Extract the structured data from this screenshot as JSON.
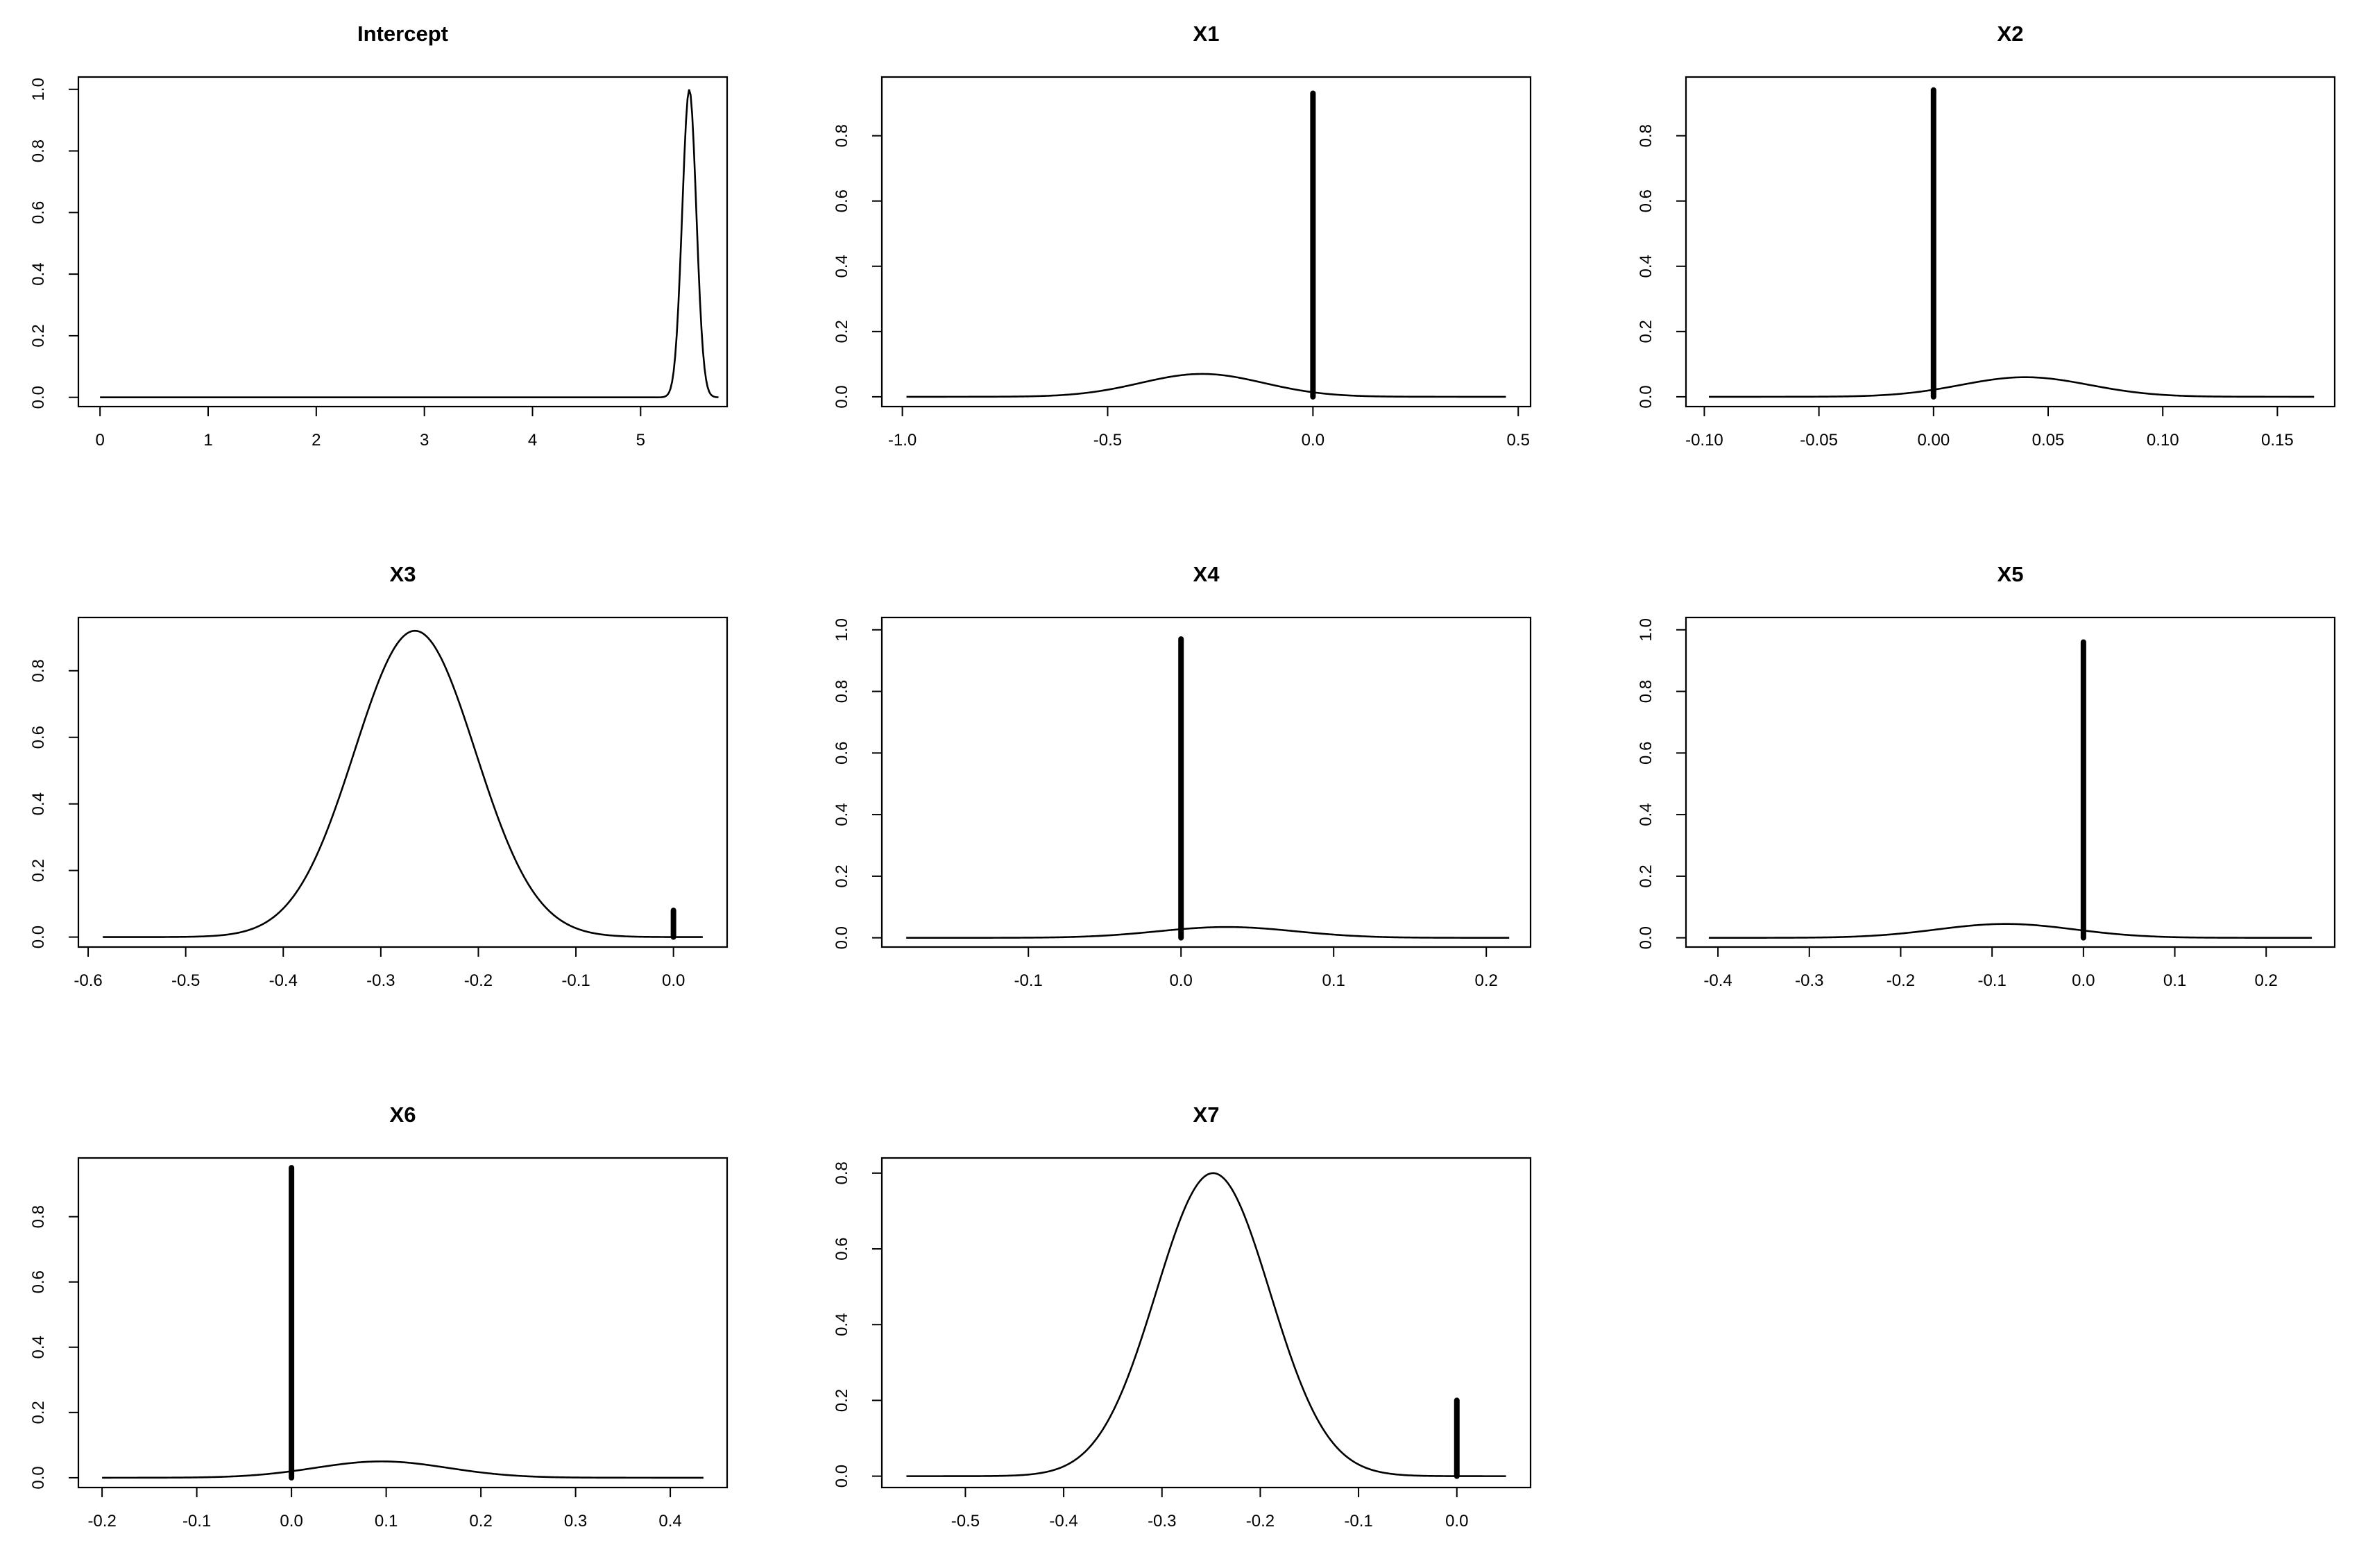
{
  "chart_data": [
    {
      "type": "line",
      "title": "Intercept",
      "xlabel": "",
      "ylabel": "",
      "xlim": [
        -0.2,
        5.8
      ],
      "ylim": [
        -0.03,
        1.04
      ],
      "x_ticks": [
        "0",
        "1",
        "2",
        "3",
        "4",
        "5"
      ],
      "y_ticks": [
        "0.0",
        "0.2",
        "0.4",
        "0.6",
        "0.8",
        "1.0"
      ],
      "curve": {
        "x_range": [
          0,
          5.72
        ],
        "peak_x": 5.45,
        "peak_y": 1.0,
        "sd": 0.065
      },
      "spike": null,
      "grid": false,
      "legend": "none"
    },
    {
      "type": "line",
      "title": "X1",
      "xlabel": "",
      "ylabel": "",
      "xlim": [
        -1.05,
        0.53
      ],
      "ylim": [
        -0.03,
        0.98
      ],
      "x_ticks": [
        "-1.0",
        "-0.5",
        "0.0",
        "0.5"
      ],
      "y_ticks": [
        "0.0",
        "0.2",
        "0.4",
        "0.6",
        "0.8"
      ],
      "curve": {
        "x_range": [
          -0.99,
          0.47
        ],
        "peak_x": -0.27,
        "peak_y": 0.07,
        "sd": 0.15
      },
      "spike": {
        "x": 0.0,
        "y": 0.93
      },
      "grid": false,
      "legend": "none"
    },
    {
      "type": "line",
      "title": "X2",
      "xlabel": "",
      "ylabel": "",
      "xlim": [
        -0.108,
        0.175
      ],
      "ylim": [
        -0.03,
        0.98
      ],
      "x_ticks": [
        "-0.10",
        "-0.05",
        "0.00",
        "0.05",
        "0.10",
        "0.15"
      ],
      "y_ticks": [
        "0.0",
        "0.2",
        "0.4",
        "0.6",
        "0.8"
      ],
      "curve": {
        "x_range": [
          -0.098,
          0.166
        ],
        "peak_x": 0.04,
        "peak_y": 0.06,
        "sd": 0.028
      },
      "spike": {
        "x": 0.0,
        "y": 0.94
      },
      "grid": false,
      "legend": "none"
    },
    {
      "type": "line",
      "title": "X3",
      "xlabel": "",
      "ylabel": "",
      "xlim": [
        -0.61,
        0.055
      ],
      "ylim": [
        -0.03,
        0.96
      ],
      "x_ticks": [
        "-0.6",
        "-0.5",
        "-0.4",
        "-0.3",
        "-0.2",
        "-0.1",
        "0.0"
      ],
      "y_ticks": [
        "0.0",
        "0.2",
        "0.4",
        "0.6",
        "0.8"
      ],
      "curve": {
        "x_range": [
          -0.585,
          0.03
        ],
        "peak_x": -0.265,
        "peak_y": 0.92,
        "sd": 0.062
      },
      "spike": {
        "x": 0.0,
        "y": 0.08
      },
      "grid": false,
      "legend": "none"
    },
    {
      "type": "line",
      "title": "X4",
      "xlabel": "",
      "ylabel": "",
      "xlim": [
        -0.196,
        0.229
      ],
      "ylim": [
        -0.03,
        1.04
      ],
      "x_ticks": [
        "-0.1",
        "0.0",
        "0.1",
        "0.2"
      ],
      "y_ticks": [
        "0.0",
        "0.2",
        "0.4",
        "0.6",
        "0.8",
        "1.0"
      ],
      "curve": {
        "x_range": [
          -0.18,
          0.215
        ],
        "peak_x": 0.03,
        "peak_y": 0.035,
        "sd": 0.045
      },
      "spike": {
        "x": 0.0,
        "y": 0.97
      },
      "grid": false,
      "legend": "none"
    },
    {
      "type": "line",
      "title": "X5",
      "xlabel": "",
      "ylabel": "",
      "xlim": [
        -0.435,
        0.275
      ],
      "ylim": [
        -0.03,
        1.04
      ],
      "x_ticks": [
        "-0.4",
        "-0.3",
        "-0.2",
        "-0.1",
        "0.0",
        "0.1",
        "0.2"
      ],
      "y_ticks": [
        "0.0",
        "0.2",
        "0.4",
        "0.6",
        "0.8",
        "1.0"
      ],
      "curve": {
        "x_range": [
          -0.41,
          0.25
        ],
        "peak_x": -0.085,
        "peak_y": 0.045,
        "sd": 0.075
      },
      "spike": {
        "x": 0.0,
        "y": 0.96
      },
      "grid": false,
      "legend": "none"
    },
    {
      "type": "line",
      "title": "X6",
      "xlabel": "",
      "ylabel": "",
      "xlim": [
        -0.225,
        0.46
      ],
      "ylim": [
        -0.03,
        0.98
      ],
      "x_ticks": [
        "-0.2",
        "-0.1",
        "0.0",
        "0.1",
        "0.2",
        "0.3",
        "0.4"
      ],
      "y_ticks": [
        "0.0",
        "0.2",
        "0.4",
        "0.6",
        "0.8"
      ],
      "curve": {
        "x_range": [
          -0.2,
          0.435
        ],
        "peak_x": 0.095,
        "peak_y": 0.05,
        "sd": 0.07
      },
      "spike": {
        "x": 0.0,
        "y": 0.95
      },
      "grid": false,
      "legend": "none"
    },
    {
      "type": "line",
      "title": "X7",
      "xlabel": "",
      "ylabel": "",
      "xlim": [
        -0.585,
        0.075
      ],
      "ylim": [
        -0.03,
        0.84
      ],
      "x_ticks": [
        "-0.5",
        "-0.4",
        "-0.3",
        "-0.2",
        "-0.1",
        "0.0"
      ],
      "y_ticks": [
        "0.0",
        "0.2",
        "0.4",
        "0.6",
        "0.8"
      ],
      "curve": {
        "x_range": [
          -0.56,
          0.05
        ],
        "peak_x": -0.248,
        "peak_y": 0.8,
        "sd": 0.058
      },
      "spike": {
        "x": 0.0,
        "y": 0.2
      },
      "grid": false,
      "legend": "none"
    }
  ]
}
